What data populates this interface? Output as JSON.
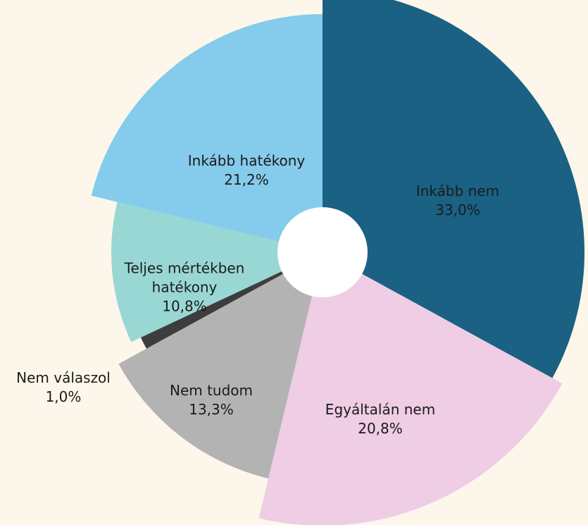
{
  "chart_data": {
    "type": "pie",
    "categories": [
      "Inkább nem",
      "Egyáltalán nem",
      "Nem tudom",
      "Nem válaszol",
      "Teljes mértékben hatékony",
      "Inkább hatékony"
    ],
    "values": [
      33.0,
      20.8,
      13.3,
      1.0,
      10.8,
      21.2
    ],
    "value_labels": [
      "33,0%",
      "20,8%",
      "13,3%",
      "1,0%",
      "10,8%",
      "21,2%"
    ],
    "colors": [
      "#1a6184",
      "#efcde4",
      "#b3b3b3",
      "#3d3d3d",
      "#98d7d4",
      "#85cbec"
    ]
  }
}
